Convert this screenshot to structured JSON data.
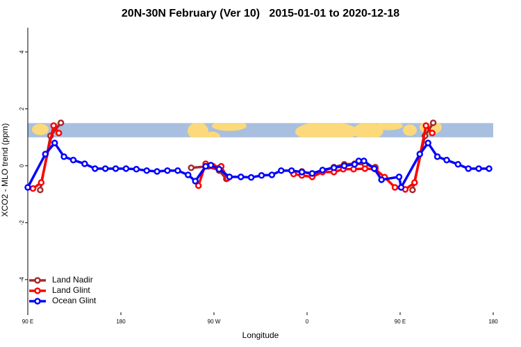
{
  "chart_data": {
    "type": "line",
    "title": "20N-30N February (Ver 10)   2015-01-01 to 2020-12-18",
    "x_label": "Longitude",
    "y_label": "XCO2 - MLO trend (ppm)",
    "xlim": [
      90,
      540
    ],
    "xticks": [
      {
        "value": 90,
        "label": "90 E"
      },
      {
        "value": 180,
        "label": "180"
      },
      {
        "value": 270,
        "label": "90 W"
      },
      {
        "value": 360,
        "label": "0"
      },
      {
        "value": 450,
        "label": "90 E"
      },
      {
        "value": 540,
        "label": "180"
      }
    ],
    "ylim": [
      -5.15,
      4.85
    ],
    "yticks": [
      -4,
      -2,
      0,
      2,
      4
    ],
    "legend": "bottom-left",
    "map_band": {
      "ylim": [
        1.0,
        1.5
      ],
      "color": "#a9bfdf",
      "land_color": "#fcd97a"
    },
    "series": [
      {
        "name": "Land Nadir",
        "color": "#a52a2a",
        "x": [
          102,
          112,
          122,
          null,
          248,
          265,
          275,
          282,
          null,
          355,
          365,
          375,
          386,
          396,
          406,
          416,
          426,
          null,
          462,
          474,
          482
        ],
        "values": [
          -0.85,
          1.05,
          1.51,
          null,
          -0.07,
          -0.02,
          -0.17,
          -0.46,
          null,
          -0.2,
          -0.29,
          -0.17,
          -0.05,
          0.05,
          0.07,
          0.05,
          -0.05,
          null,
          -0.85,
          1.05,
          1.51
        ]
      },
      {
        "name": "Land Glint",
        "color": "#ff0000",
        "x": [
          95,
          103,
          115,
          120,
          null,
          255,
          262,
          269,
          277,
          283,
          null,
          347,
          355,
          365,
          375,
          386,
          395,
          405,
          416,
          426,
          435,
          445,
          455,
          464,
          475,
          481
        ],
        "values": [
          -0.8,
          -0.59,
          1.41,
          1.15,
          null,
          -0.7,
          0.07,
          -0.02,
          -0.02,
          -0.44,
          null,
          -0.29,
          -0.34,
          -0.39,
          -0.22,
          -0.22,
          -0.12,
          -0.12,
          -0.1,
          -0.12,
          -0.4,
          -0.76,
          -0.83,
          -0.59,
          1.41,
          1.15
        ]
      },
      {
        "name": "Ocean Glint",
        "color": "#0000ff",
        "x": [
          90,
          107,
          116,
          125,
          134,
          145,
          155,
          165,
          175,
          185,
          195,
          205,
          215,
          225,
          235,
          245,
          252,
          262,
          267,
          275,
          285,
          296,
          306,
          316,
          326,
          335,
          345,
          355,
          365,
          375,
          386,
          396,
          406,
          410,
          415,
          425,
          432,
          449,
          451,
          469,
          477,
          486,
          495,
          506,
          516,
          526,
          536
        ],
        "values": [
          -0.76,
          0.41,
          0.8,
          0.32,
          0.2,
          0.07,
          -0.1,
          -0.1,
          -0.1,
          -0.1,
          -0.12,
          -0.17,
          -0.2,
          -0.17,
          -0.17,
          -0.32,
          -0.54,
          -0.02,
          0.02,
          -0.12,
          -0.39,
          -0.39,
          -0.41,
          -0.34,
          -0.32,
          -0.17,
          -0.17,
          -0.22,
          -0.27,
          -0.15,
          -0.07,
          0.0,
          0.05,
          0.17,
          0.17,
          -0.1,
          -0.49,
          -0.39,
          -0.76,
          0.41,
          0.8,
          0.32,
          0.2,
          0.05,
          -0.1,
          -0.1,
          -0.1
        ]
      }
    ]
  }
}
